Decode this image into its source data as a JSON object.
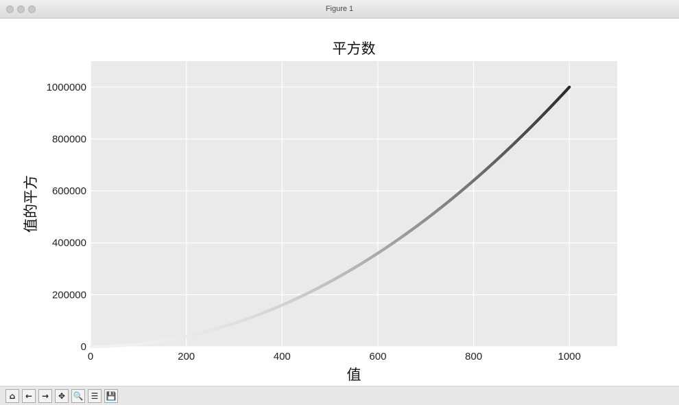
{
  "window": {
    "title": "Figure 1"
  },
  "toolbar": [
    {
      "name": "home-icon",
      "glyph": "⌂"
    },
    {
      "name": "back-icon",
      "glyph": "←"
    },
    {
      "name": "forward-icon",
      "glyph": "→"
    },
    {
      "name": "pan-icon",
      "glyph": "✥"
    },
    {
      "name": "zoom-icon",
      "glyph": "🔍"
    },
    {
      "name": "subplots-icon",
      "glyph": "☰"
    },
    {
      "name": "save-icon",
      "glyph": "💾"
    }
  ],
  "chart_data": {
    "type": "scatter",
    "title": "平方数",
    "xlabel": "值",
    "ylabel": "值的平方",
    "xlim": [
      0,
      1100
    ],
    "ylim": [
      0,
      1100000
    ],
    "xticks": [
      0,
      200,
      400,
      600,
      800,
      1000
    ],
    "yticks": [
      0,
      200000,
      400000,
      600000,
      800000,
      1000000
    ],
    "grid": true,
    "series": [
      {
        "x_start": 1,
        "x_end": 1000,
        "x_step": 1,
        "y_expression": "x^2",
        "points_sample": [
          [
            1,
            1
          ],
          [
            200,
            40000
          ],
          [
            400,
            160000
          ],
          [
            600,
            360000
          ],
          [
            800,
            640000
          ],
          [
            1000,
            1000000
          ]
        ],
        "colormap": "Greys",
        "color_low": "#f2f2f2",
        "color_high": "#2a2a2a"
      }
    ],
    "colors": {
      "axes_background": "#eaeaea",
      "grid": "#ffffff"
    }
  }
}
